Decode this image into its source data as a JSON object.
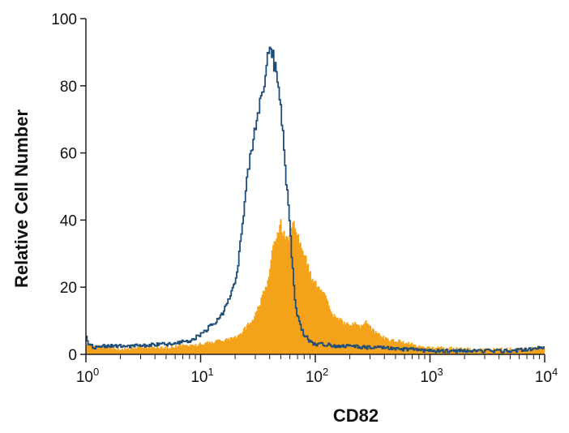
{
  "chart_data": {
    "type": "area",
    "xlabel": "CD82",
    "ylabel": "Relative Cell Number",
    "xscale": "log",
    "xlim": [
      1,
      10000
    ],
    "ylim": [
      0,
      100
    ],
    "grid": false,
    "x_ticks": [
      {
        "base": "10",
        "exp": "0",
        "value": 1
      },
      {
        "base": "10",
        "exp": "1",
        "value": 10
      },
      {
        "base": "10",
        "exp": "2",
        "value": 100
      },
      {
        "base": "10",
        "exp": "3",
        "value": 1000
      },
      {
        "base": "10",
        "exp": "4",
        "value": 10000
      }
    ],
    "y_ticks": [
      "0",
      "20",
      "40",
      "60",
      "80",
      "100"
    ],
    "series": [
      {
        "style": "filled",
        "color": "#F5A21B",
        "x": [
          1,
          1.5,
          2,
          3,
          5,
          7,
          10,
          12,
          15,
          18,
          20,
          22,
          25,
          28,
          30,
          32,
          35,
          38,
          40,
          42,
          45,
          48,
          50,
          52,
          55,
          58,
          60,
          63,
          65,
          68,
          70,
          75,
          80,
          85,
          90,
          95,
          100,
          110,
          120,
          130,
          140,
          150,
          160,
          170,
          180,
          200,
          220,
          250,
          270,
          300,
          350,
          400,
          450,
          500,
          600,
          700,
          800,
          1000,
          1500,
          2000,
          3000,
          5000,
          7000,
          10000
        ],
        "values": [
          3,
          2,
          1.5,
          2,
          2,
          2.5,
          3,
          3.5,
          4,
          4.5,
          5,
          6,
          8,
          10,
          12,
          14,
          18,
          21,
          25,
          30,
          34,
          37,
          39,
          37,
          35,
          34,
          36,
          38,
          39,
          37,
          35,
          33,
          30,
          27,
          24,
          22,
          21,
          20,
          18,
          15,
          12,
          11,
          10,
          10,
          9,
          9,
          9,
          8,
          10,
          8,
          6,
          5,
          4,
          4,
          3.5,
          3,
          2.5,
          2,
          1.8,
          1.5,
          1.5,
          1.5,
          1.5,
          2
        ]
      },
      {
        "style": "outline",
        "color": "#1F4E79",
        "x": [
          1,
          1.05,
          1.2,
          1.5,
          2,
          3,
          4,
          5,
          6,
          7,
          8,
          9,
          10,
          12,
          14,
          16,
          18,
          20,
          21,
          22,
          23,
          24,
          25,
          26,
          27,
          28,
          29,
          30,
          31,
          32,
          33,
          34,
          35,
          36,
          37,
          38,
          39,
          40,
          41,
          42,
          43,
          44,
          45,
          46,
          48,
          50,
          52,
          54,
          56,
          58,
          60,
          62,
          64,
          66,
          68,
          70,
          72,
          75,
          80,
          85,
          90,
          100,
          120,
          150,
          200,
          300,
          400,
          500,
          700,
          1000,
          2000,
          5000,
          10000
        ],
        "values": [
          6,
          3,
          2,
          2.5,
          2.5,
          2.5,
          3,
          3,
          3,
          4,
          4,
          5,
          6,
          8,
          10,
          13,
          17,
          22,
          26,
          31,
          37,
          43,
          49,
          54,
          58,
          62,
          64,
          67,
          70,
          73,
          75,
          78,
          80,
          82,
          84,
          86,
          88,
          89,
          90,
          91,
          88,
          86,
          85,
          84,
          80,
          75,
          68,
          60,
          52,
          45,
          38,
          31,
          24,
          18,
          14,
          12,
          10,
          8,
          6,
          5,
          4,
          3,
          3,
          2.5,
          2.5,
          2,
          2,
          1.5,
          1.5,
          1,
          1,
          1,
          2
        ]
      }
    ]
  }
}
